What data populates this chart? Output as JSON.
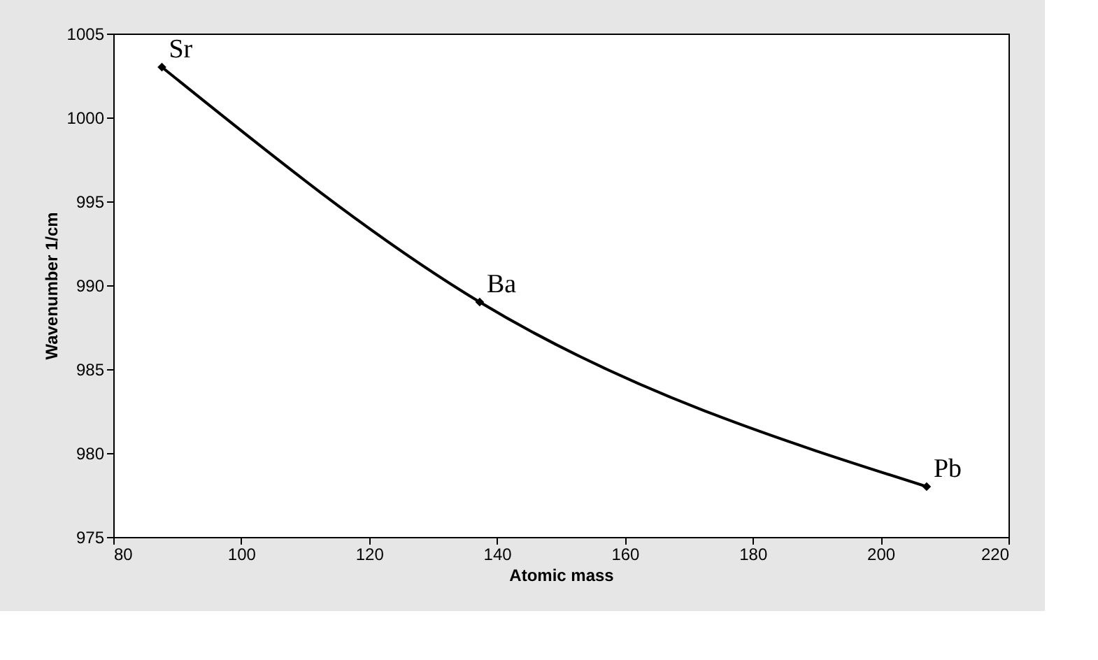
{
  "chart_data": {
    "type": "line",
    "xlabel": "Atomic mass",
    "ylabel": "Wavenumber 1/cm",
    "x": [
      87.6,
      137.3,
      207.2
    ],
    "series": [
      {
        "color": "#000000",
        "values": [
          1003,
          989,
          978
        ]
      }
    ],
    "xlim": [
      80,
      220
    ],
    "xticks": [
      80,
      100,
      120,
      140,
      160,
      180,
      200,
      220
    ],
    "ylim": [
      975,
      1005
    ],
    "yticks": [
      975,
      980,
      985,
      990,
      995,
      1000,
      1005
    ],
    "marker": "diamond",
    "grid": false,
    "annotations": [
      {
        "text": "Sr",
        "x": 87.6,
        "y": 1003
      },
      {
        "text": "Ba",
        "x": 137.3,
        "y": 989
      },
      {
        "text": "Pb",
        "x": 207.2,
        "y": 978
      }
    ]
  }
}
